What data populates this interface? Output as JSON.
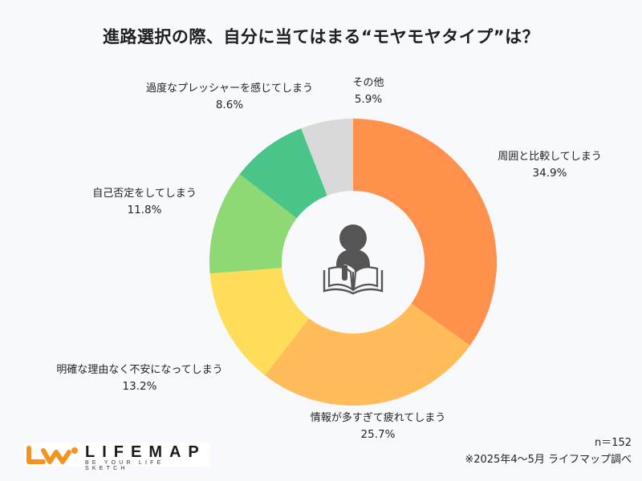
{
  "title": "進路選択の際、自分に当てはまる“モヤモヤタイプ”は？",
  "chart_data": {
    "type": "pie",
    "subtype": "donut",
    "title": "進路選択の際、自分に当てはまる“モヤモヤタイプ”は？",
    "categories": [
      "周囲と比較してしまう",
      "情報が多すぎて疲れてしまう",
      "明確な理由なく不安になってしまう",
      "自己否定をしてしまう",
      "過度なプレッシャーを感じてしまう",
      "その他"
    ],
    "values": [
      34.9,
      25.7,
      13.2,
      11.8,
      8.6,
      5.9
    ],
    "colors": [
      "#FF914D",
      "#FFBC59",
      "#FFDD59",
      "#8ED973",
      "#4AC58A",
      "#D9D9D9"
    ],
    "unit": "%",
    "start_angle": "12 o'clock, clockwise",
    "center_icon": "person-reading-book-icon",
    "n": 152
  },
  "labels": [
    {
      "text": "周囲と比較してしまう",
      "pct": "34.9%"
    },
    {
      "text": "情報が多すぎて疲れてしまう",
      "pct": "25.7%"
    },
    {
      "text": "明確な理由なく不安になってしまう",
      "pct": "13.2%"
    },
    {
      "text": "自己否定をしてしまう",
      "pct": "11.8%"
    },
    {
      "text": "過度なプレッシャーを感じてしまう",
      "pct": "8.6%"
    },
    {
      "text": "その他",
      "pct": "5.9%"
    }
  ],
  "footer": {
    "n": "n＝152",
    "note": "※2025年4〜5月 ライフマップ調べ"
  },
  "logo": {
    "name": "LIFEMAP",
    "tagline": "BE YOUR LIFE SKETCH",
    "color": "#F39322"
  }
}
